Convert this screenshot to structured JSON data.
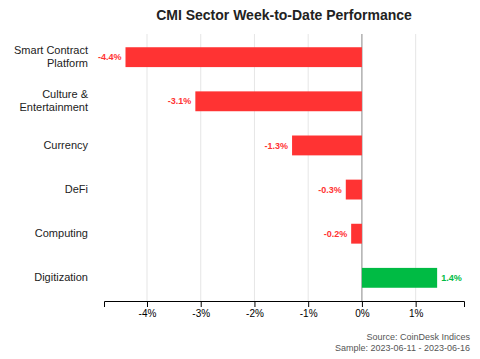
{
  "chart_data": {
    "type": "bar",
    "orientation": "horizontal",
    "title": "CMI Sector Week-to-Date Performance",
    "categories": [
      "Smart Contract\nPlatform",
      "Culture &\nEntertainment",
      "Currency",
      "DeFi",
      "Computing",
      "Digitization"
    ],
    "values": [
      -4.4,
      -3.1,
      -1.3,
      -0.3,
      -0.2,
      1.4
    ],
    "value_labels": [
      "-4.4%",
      "-3.1%",
      "-1.3%",
      "-0.3%",
      "-0.2%",
      "1.4%"
    ],
    "data_labels": true,
    "colors": [
      "#ff3333",
      "#ff3333",
      "#ff3333",
      "#ff3333",
      "#ff3333",
      "#00bb44"
    ],
    "xlim": [
      -4.8,
      1.9
    ],
    "xticks": [
      {
        "value": -4,
        "label": "-4%"
      },
      {
        "value": -3,
        "label": "-3%"
      },
      {
        "value": -2,
        "label": "-2%"
      },
      {
        "value": -1,
        "label": "-1%"
      },
      {
        "value": 0,
        "label": "0%"
      },
      {
        "value": 1,
        "label": "1%"
      }
    ],
    "grid": true,
    "annotations": [
      "Source: CoinDesk Indices\nSample: 2023-06-11 - 2023-06-16"
    ]
  }
}
